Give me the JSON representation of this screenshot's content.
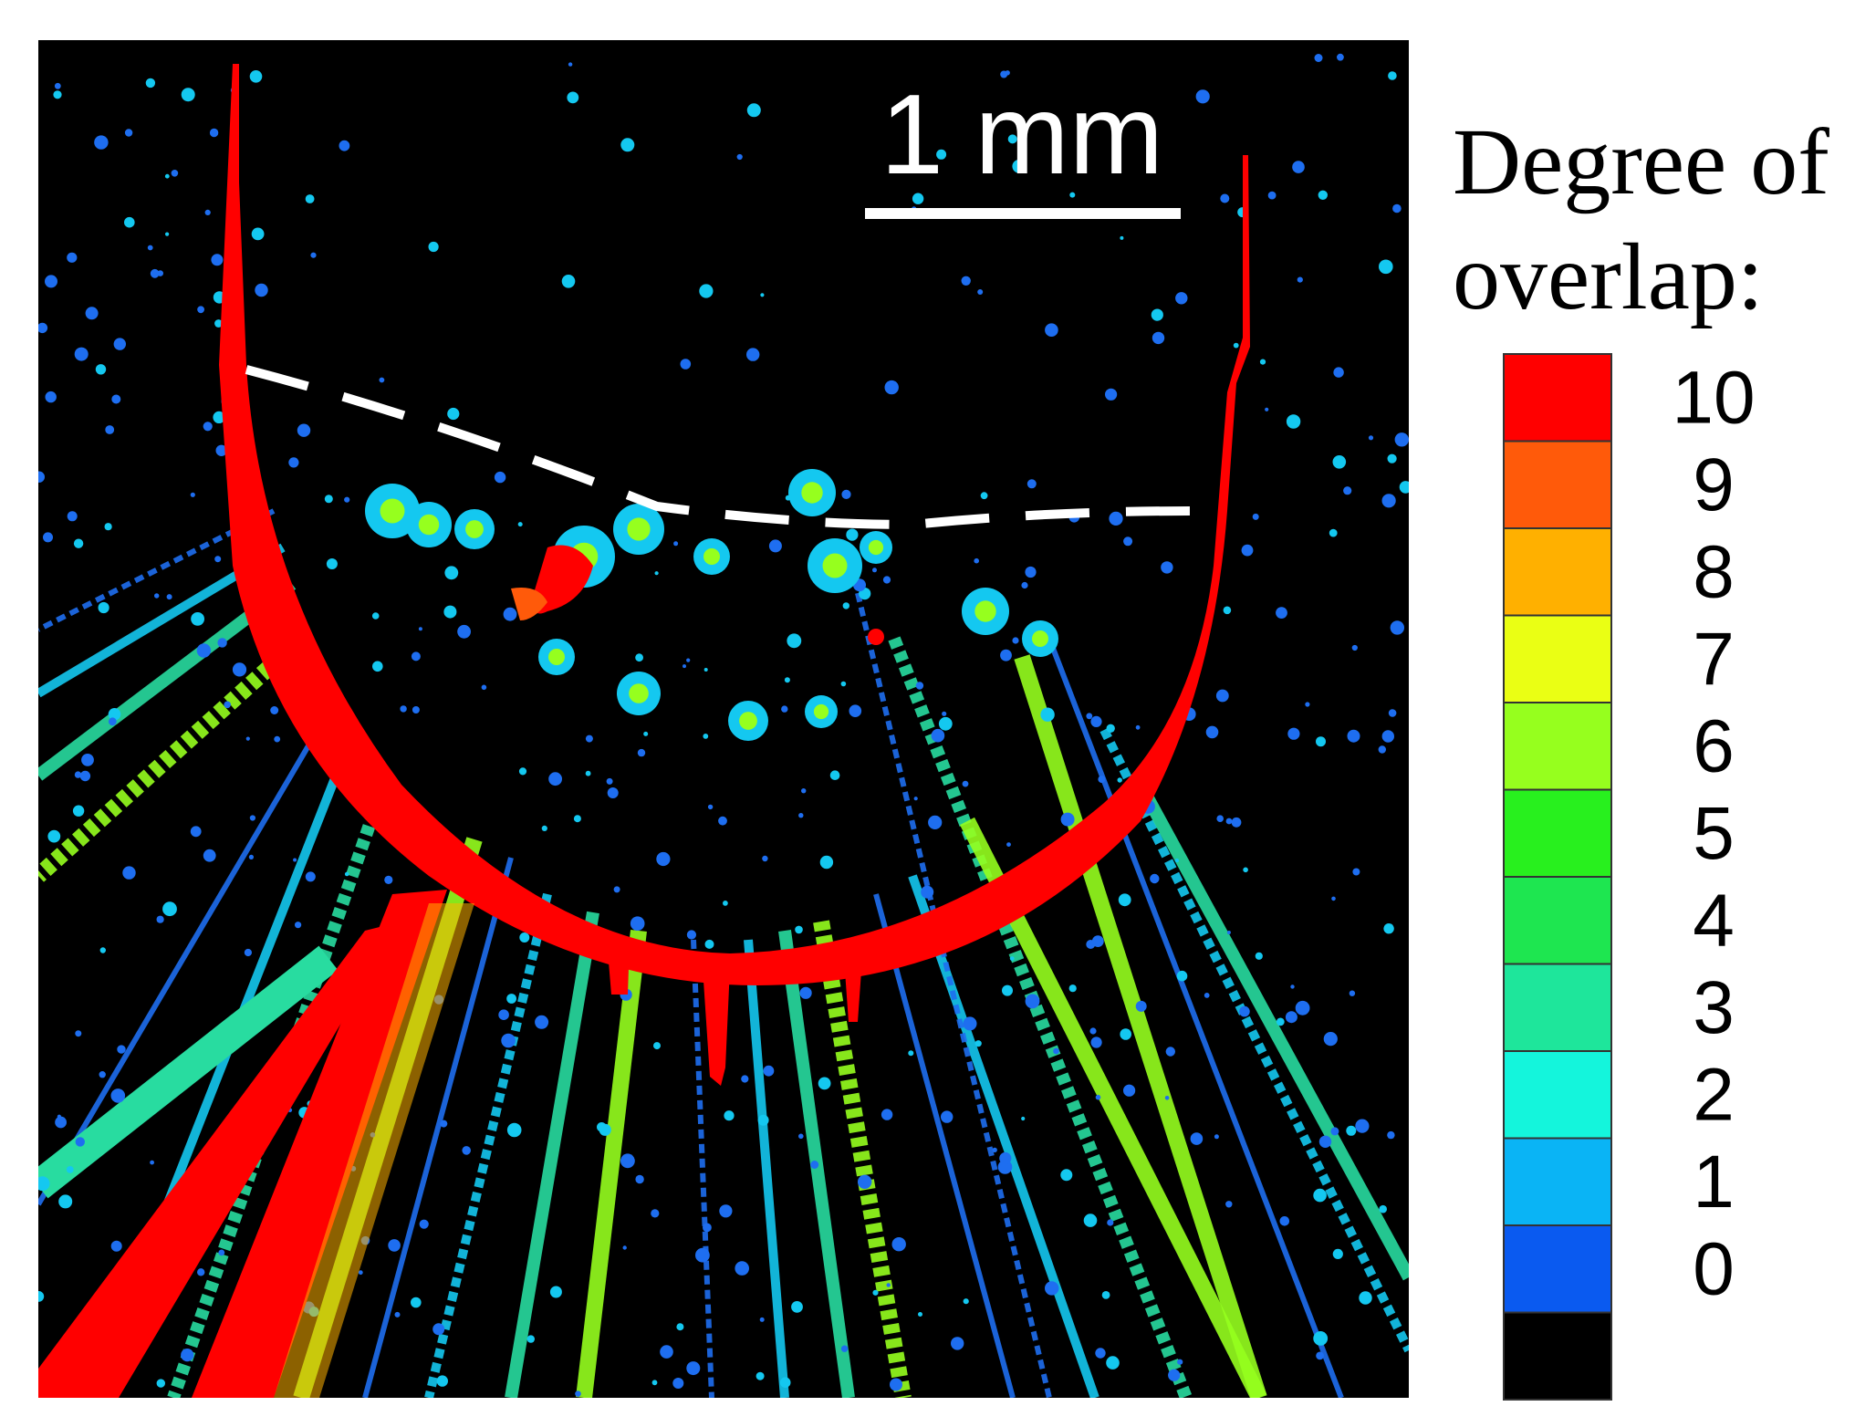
{
  "scale_bar": {
    "label": "1 mm"
  },
  "colorbar": {
    "title_lines": [
      "Degree of",
      "overlap:"
    ],
    "levels": [
      {
        "label": "10",
        "color": "#ff0000"
      },
      {
        "label": "9",
        "color": "#ff5a0a"
      },
      {
        "label": "8",
        "color": "#ffb000"
      },
      {
        "label": "7",
        "color": "#eaff14"
      },
      {
        "label": "6",
        "color": "#96ff1e"
      },
      {
        "label": "5",
        "color": "#28f01e"
      },
      {
        "label": "4",
        "color": "#1ee650"
      },
      {
        "label": "3",
        "color": "#1ee69b"
      },
      {
        "label": "2",
        "color": "#14f5dc"
      },
      {
        "label": "1",
        "color": "#0ab4f5"
      },
      {
        "label": "0",
        "color": "#0a5af0"
      },
      {
        "label": "",
        "color": "#000000"
      }
    ]
  },
  "palette": {
    "background": "#000000",
    "overlap_high": "#ff0000",
    "particle_low": "#1e6ef0",
    "particle_mid": "#14c8f0",
    "particle_high": "#28dca0",
    "annotation": "#ffffff"
  }
}
